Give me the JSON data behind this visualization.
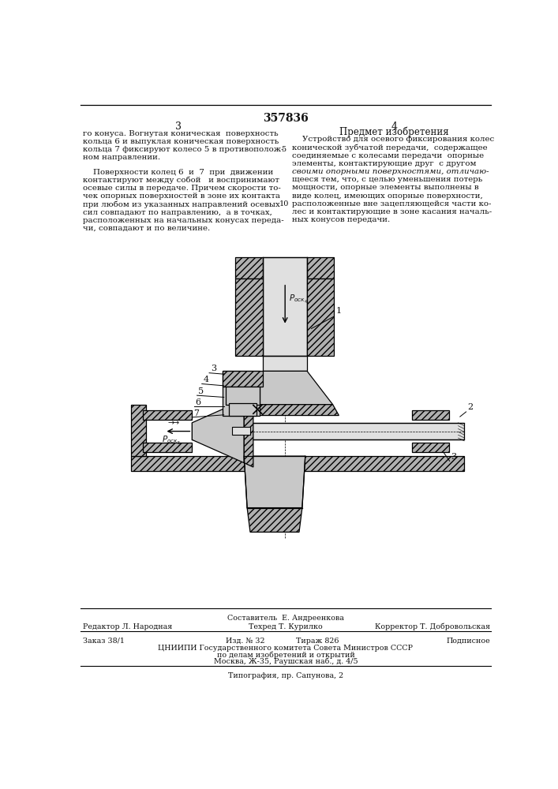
{
  "title_number": "357836",
  "page_left": "3",
  "page_right": "4",
  "left_text1": [
    "го конуса. Вогнутая коническая  поверхность",
    "кольца 6 и выпуклая коническая поверхность",
    "кольца 7 фиксируют колесо 5 в противополож-",
    "ном направлении."
  ],
  "left_text2": [
    "    Поверхности колец 6  и  7  при  движении",
    "контактируют между собой   и воспринимают",
    "осевые силы в передаче. Причем скорости то-",
    "чек опорных поверхностей в зоне их контакта",
    "при любом из указанных направлений осевых",
    "сил совпадают по направлению,  а в точках,",
    "расположенных на начальных конусах переда-",
    "чи, совпадают и по величине."
  ],
  "right_heading": "Предмет изобретения",
  "right_text": [
    "    Устройство для осевого фиксирования колес",
    "конической зубчатой передачи,  содержащее",
    "соединяемые с колесами передачи  опорные",
    "элементы, контактирующие друг  с другом",
    "своими опорными поверхностями, отличаю-",
    "щееся тем, что, с целью уменьшения потерь",
    "мощности, опорные элементы выполнены в",
    "виде колец, имеющих опорные поверхности,",
    "расположенные вне зацепляющейся части ко-",
    "лес и контактирующие в зоне касания началь-",
    "ных конусов передачи."
  ],
  "footer_composer": "Составитель  Е. Андреенкова",
  "footer_editor": "Редактор Л. Народная",
  "footer_techred": "Техред Т. Курилко",
  "footer_corrector": "Корректор Т. Добровольская",
  "footer_order": "Заказ 38/1",
  "footer_issue": "Изд. № 32",
  "footer_copies": "Тираж 826",
  "footer_subscr": "Подписное",
  "footer_org1": "ЦНИИПИ Государственного комитета Совета Министров СССР",
  "footer_org2": "по делам изобретений и открытий",
  "footer_org3": "Москва, Ж-35, Раушская наб., д. 4/5",
  "footer_print": "Типография, пр. Сапунова, 2",
  "bg_color": "#ffffff",
  "text_color": "#111111",
  "draw_gray1": "#c8c8c8",
  "draw_gray2": "#b0b0b0",
  "draw_gray3": "#e0e0e0",
  "draw_dark": "#888888"
}
